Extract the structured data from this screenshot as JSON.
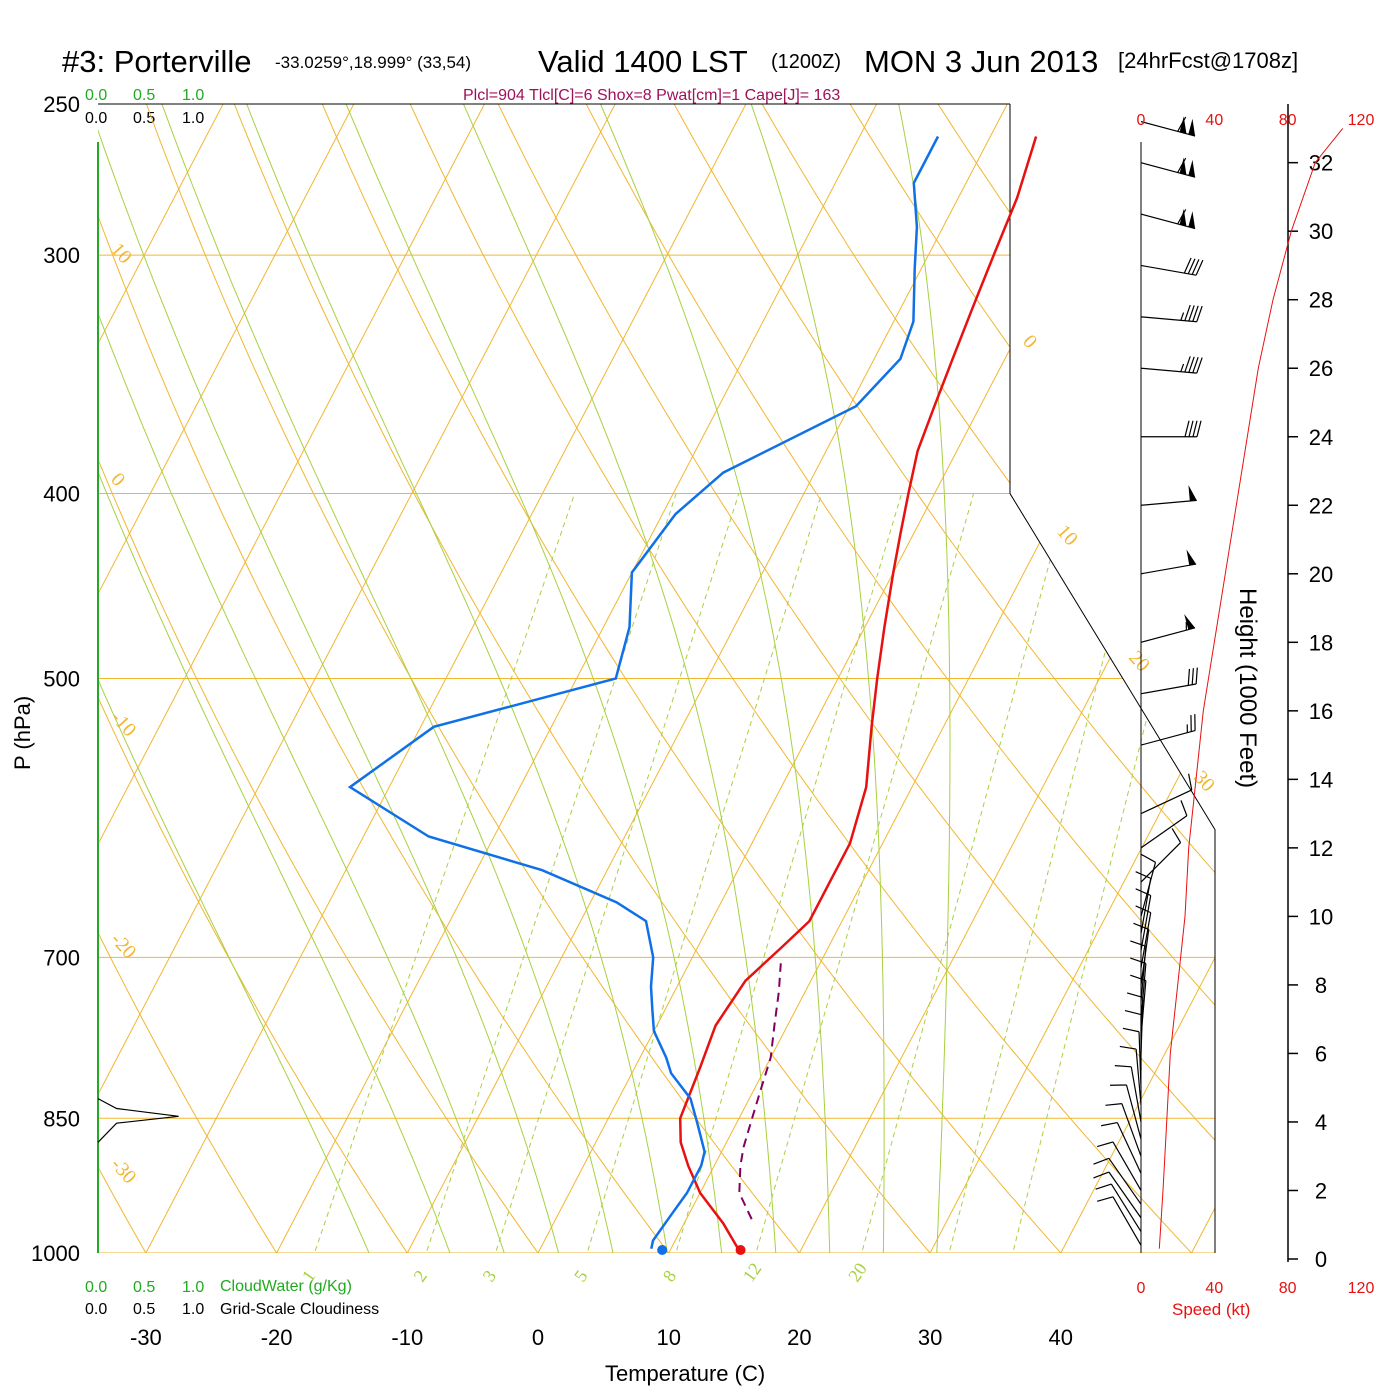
{
  "header": {
    "station": "#3: Porterville",
    "coords": "-33.0259°,18.999° (33,54)",
    "valid": "Valid 1400 LST",
    "zulu": "(1200Z)",
    "date": "MON 3 Jun 2013",
    "forecast": "[24hrFcst@1708z]",
    "indices": "Plcl=904 Tlcl[C]=6 Shox=8 Pwat[cm]=1 Cape[J]= 163"
  },
  "colors": {
    "temperature": "#e81010",
    "dewpoint": "#1070e8",
    "parcel": "#800060",
    "isotherm": "#f2b630",
    "dry_adiabat": "#a8d040",
    "mixing_ratio": "#a8d040",
    "cloud": "#22aa22",
    "speed": "#e81010",
    "indices": "#a0105a"
  },
  "cloud_scale": {
    "water_ticks": [
      "0.0",
      "0.5",
      "1.0"
    ],
    "cover_ticks": [
      "0.0",
      "0.5",
      "1.0"
    ],
    "water_label": "CloudWater (g/Kg)",
    "cover_label": "Grid-Scale Cloudiness"
  },
  "isotherm_labels": [
    "10",
    "0",
    "-10",
    "-20",
    "-30",
    "0",
    "10",
    "20",
    "30"
  ],
  "mixing_ratio_labels": [
    "1",
    "2",
    "3",
    "5",
    "8",
    "12",
    "20"
  ],
  "chart_data": {
    "type": "line",
    "xlabel": "Temperature (C)",
    "ylabel": "P (hPa)",
    "xlim": [
      -34,
      47
    ],
    "ylim": [
      1000,
      250
    ],
    "x_ticks": [
      -30,
      -20,
      -10,
      0,
      10,
      20,
      30,
      40
    ],
    "p_ticks": [
      1000,
      850,
      700,
      500,
      400,
      300,
      250
    ],
    "right_axis": {
      "label": "Height (1000 Feet)",
      "ticks": [
        0,
        2,
        4,
        6,
        8,
        10,
        12,
        14,
        16,
        18,
        20,
        22,
        24,
        26,
        28,
        30,
        32
      ]
    },
    "speed_axis": {
      "label": "Speed (kt)",
      "ticks": [
        0,
        40,
        80,
        120
      ]
    },
    "series": [
      {
        "key": "temperature",
        "points": [
          [
            15.5,
            1000
          ],
          [
            13,
            965
          ],
          [
            10,
            930
          ],
          [
            8,
            900
          ],
          [
            6.5,
            875
          ],
          [
            5.5,
            850
          ],
          [
            5,
            800
          ],
          [
            4.5,
            760
          ],
          [
            5,
            720
          ],
          [
            6.5,
            690
          ],
          [
            7.5,
            670
          ],
          [
            7.5,
            640
          ],
          [
            7.5,
            610
          ],
          [
            6.5,
            570
          ],
          [
            4.5,
            530
          ],
          [
            3,
            500
          ],
          [
            1.5,
            470
          ],
          [
            0,
            440
          ],
          [
            -1,
            420
          ],
          [
            -2,
            400
          ],
          [
            -3,
            380
          ],
          [
            -3.5,
            360
          ],
          [
            -4,
            340
          ],
          [
            -4.5,
            320
          ],
          [
            -5,
            300
          ],
          [
            -5.5,
            280
          ],
          [
            -6.5,
            260
          ]
        ]
      },
      {
        "key": "dewpoint",
        "points": [
          [
            8.5,
            995
          ],
          [
            8.3,
            985
          ],
          [
            8.6,
            960
          ],
          [
            9,
            930
          ],
          [
            9,
            900
          ],
          [
            8.7,
            885
          ],
          [
            7,
            855
          ],
          [
            5.5,
            830
          ],
          [
            3,
            805
          ],
          [
            2,
            790
          ],
          [
            0,
            765
          ],
          [
            -1,
            745
          ],
          [
            -2,
            725
          ],
          [
            -3,
            700
          ],
          [
            -5,
            670
          ],
          [
            -8,
            655
          ],
          [
            -15,
            630
          ],
          [
            -25,
            605
          ],
          [
            -33,
            570
          ],
          [
            -29,
            530
          ],
          [
            -17,
            500
          ],
          [
            -18,
            470
          ],
          [
            -20,
            440
          ],
          [
            -19,
            410
          ],
          [
            -17,
            390
          ],
          [
            -9.5,
            360
          ],
          [
            -8,
            340
          ],
          [
            -8.5,
            325
          ],
          [
            -10.5,
            305
          ],
          [
            -12,
            290
          ],
          [
            -14,
            275
          ],
          [
            -14,
            260
          ]
        ]
      },
      {
        "key": "parcel",
        "points": [
          [
            15,
            960
          ],
          [
            13,
            930
          ],
          [
            12,
            900
          ],
          [
            11.5,
            880
          ],
          [
            11,
            850
          ],
          [
            10.5,
            820
          ],
          [
            10,
            790
          ],
          [
            9,
            760
          ],
          [
            8,
            730
          ],
          [
            7,
            705
          ]
        ]
      }
    ],
    "surface": {
      "temperature": 15.5,
      "dewpoint": 9.5
    },
    "height_profile": [
      [
        10,
        0.3
      ],
      [
        12,
        2
      ],
      [
        14,
        4
      ],
      [
        16,
        6
      ],
      [
        20,
        8
      ],
      [
        24,
        10
      ],
      [
        26,
        12
      ],
      [
        30,
        14
      ],
      [
        34,
        16
      ],
      [
        40,
        18
      ],
      [
        46,
        20
      ],
      [
        52,
        22
      ],
      [
        58,
        24
      ],
      [
        64,
        26
      ],
      [
        72,
        28
      ],
      [
        82,
        30
      ],
      [
        95,
        32
      ],
      [
        110,
        33
      ]
    ],
    "winds": [
      {
        "h": 0.4,
        "speed": 10,
        "dir": 150
      },
      {
        "h": 0.8,
        "speed": 10,
        "dir": 148
      },
      {
        "h": 1.2,
        "speed": 10,
        "dir": 145
      },
      {
        "h": 1.6,
        "speed": 10,
        "dir": 145
      },
      {
        "h": 2.0,
        "speed": 10,
        "dir": 150
      },
      {
        "h": 2.5,
        "speed": 10,
        "dir": 155
      },
      {
        "h": 3.0,
        "speed": 10,
        "dir": 160
      },
      {
        "h": 3.5,
        "speed": 10,
        "dir": 165
      },
      {
        "h": 4.0,
        "speed": 10,
        "dir": 170
      },
      {
        "h": 4.5,
        "speed": 10,
        "dir": 175
      },
      {
        "h": 5.0,
        "speed": 10,
        "dir": 178
      },
      {
        "h": 5.5,
        "speed": 10,
        "dir": 180
      },
      {
        "h": 6.0,
        "speed": 10,
        "dir": 182
      },
      {
        "h": 6.5,
        "speed": 10,
        "dir": 185
      },
      {
        "h": 7.0,
        "speed": 10,
        "dir": 185
      },
      {
        "h": 7.5,
        "speed": 10,
        "dir": 185
      },
      {
        "h": 8.0,
        "speed": 10,
        "dir": 188
      },
      {
        "h": 8.5,
        "speed": 10,
        "dir": 190
      },
      {
        "h": 9.0,
        "speed": 10,
        "dir": 190
      },
      {
        "h": 9.5,
        "speed": 10,
        "dir": 190
      },
      {
        "h": 10.0,
        "speed": 10,
        "dir": 195
      },
      {
        "h": 11.0,
        "speed": 10,
        "dir": 225
      },
      {
        "h": 12.0,
        "speed": 10,
        "dir": 235
      },
      {
        "h": 13.0,
        "speed": 10,
        "dir": 245
      },
      {
        "h": 15.0,
        "speed": 25,
        "dir": 255
      },
      {
        "h": 16.5,
        "speed": 30,
        "dir": 260
      },
      {
        "h": 18.0,
        "speed": 55,
        "dir": 255
      },
      {
        "h": 20.0,
        "speed": 50,
        "dir": 260
      },
      {
        "h": 22.0,
        "speed": 50,
        "dir": 265
      },
      {
        "h": 24.0,
        "speed": 40,
        "dir": 270
      },
      {
        "h": 26.0,
        "speed": 45,
        "dir": 275
      },
      {
        "h": 27.5,
        "speed": 45,
        "dir": 275
      },
      {
        "h": 29.0,
        "speed": 40,
        "dir": 280
      },
      {
        "h": 30.5,
        "speed": 110,
        "dir": 285
      },
      {
        "h": 32.0,
        "speed": 110,
        "dir": 285
      },
      {
        "h": 33.2,
        "speed": 110,
        "dir": 285
      }
    ],
    "cloud_profile": [
      [
        0.0,
        875
      ],
      [
        0.3,
        855
      ],
      [
        1.3,
        848
      ],
      [
        0.3,
        840
      ],
      [
        0.0,
        830
      ]
    ]
  }
}
